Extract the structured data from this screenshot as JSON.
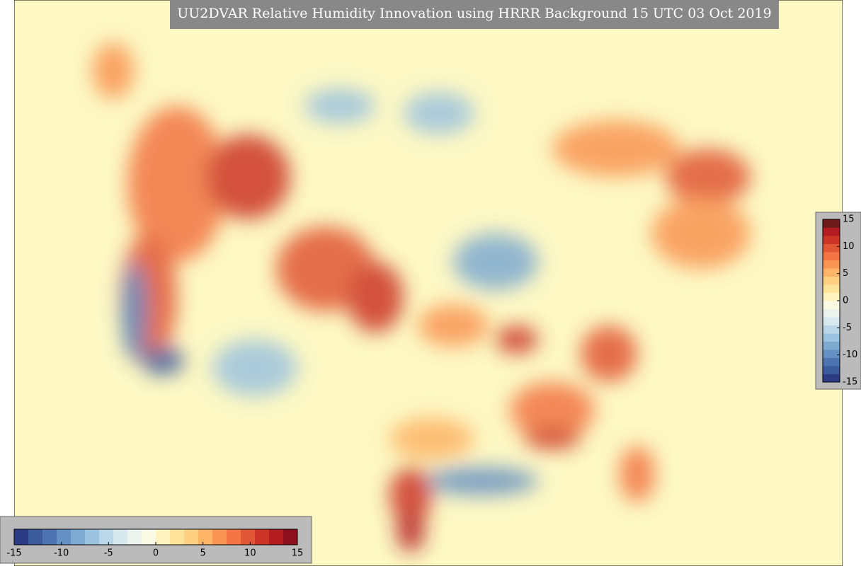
{
  "title": "UU2DVAR Relative Humidity Innovation using HRRR Background 15 UTC 03 Oct 2019",
  "colorbars": [
    {
      "orientation": "horizontal",
      "lim": [
        -15,
        15
      ],
      "ticks": [
        -15,
        -10,
        -5,
        0,
        5,
        10,
        15
      ],
      "colors": [
        "#2c3b83",
        "#3a5a9c",
        "#4d74b0",
        "#6590c3",
        "#7eaad2",
        "#9cc3df",
        "#bad7e9",
        "#d7e8ef",
        "#ebf3ee",
        "#fbfbe5",
        "#fff3c0",
        "#fee39a",
        "#fdcf80",
        "#fdb466",
        "#f99553",
        "#f27543",
        "#e15634",
        "#cc3527",
        "#b31d21",
        "#8e0f1e"
      ]
    },
    {
      "orientation": "vertical",
      "lim": [
        -15,
        15
      ],
      "ticks": [
        -15,
        -10,
        -5,
        0,
        5,
        10,
        15
      ],
      "colors": [
        "#2c3b83",
        "#3a5a9c",
        "#4d74b0",
        "#6590c3",
        "#7eaad2",
        "#9cc3df",
        "#bad7e9",
        "#d7e8ef",
        "#ebf3ee",
        "#fbfbe5",
        "#fff3c0",
        "#fee39a",
        "#fdcf80",
        "#fdb466",
        "#f99553",
        "#f27543",
        "#e15634",
        "#cc3527",
        "#b31d21",
        "#6e1a1a"
      ]
    }
  ]
}
